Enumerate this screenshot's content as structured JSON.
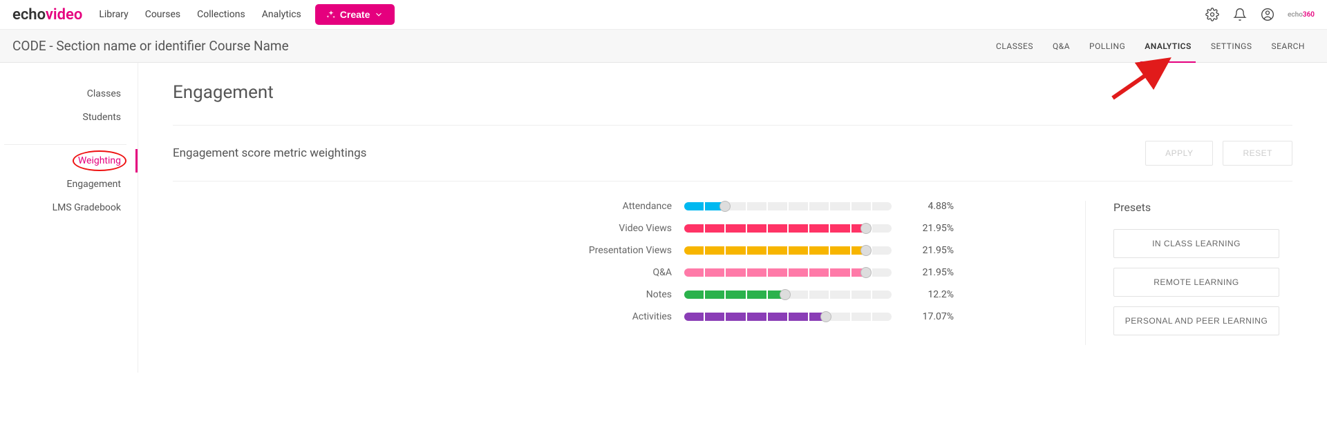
{
  "brand": {
    "part1": "echo",
    "part2": "video",
    "tag1": "echo",
    "tag2": "360"
  },
  "nav": {
    "items": [
      "Library",
      "Courses",
      "Collections",
      "Analytics"
    ],
    "create_label": "Create"
  },
  "coursebar": {
    "title": "CODE - Section name or identifier Course Name",
    "tabs": [
      {
        "label": "CLASSES",
        "active": false
      },
      {
        "label": "Q&A",
        "active": false
      },
      {
        "label": "POLLING",
        "active": false
      },
      {
        "label": "ANALYTICS",
        "active": true
      },
      {
        "label": "SETTINGS",
        "active": false
      },
      {
        "label": "SEARCH",
        "active": false
      }
    ]
  },
  "sidebar": {
    "group1": [
      "Classes",
      "Students"
    ],
    "group2": [
      {
        "label": "Weighting",
        "active": true,
        "circled": true
      },
      {
        "label": "Engagement",
        "active": false
      },
      {
        "label": "LMS Gradebook",
        "active": false
      }
    ]
  },
  "page": {
    "title": "Engagement",
    "section_title": "Engagement score metric weightings",
    "apply_label": "APPLY",
    "reset_label": "RESET"
  },
  "sliders": [
    {
      "label": "Attendance",
      "value": 4.88,
      "display": "4.88%",
      "color": "#00b8f0"
    },
    {
      "label": "Video Views",
      "value": 21.95,
      "display": "21.95%",
      "color": "#ff3366"
    },
    {
      "label": "Presentation Views",
      "value": 21.95,
      "display": "21.95%",
      "color": "#f7b500"
    },
    {
      "label": "Q&A",
      "value": 21.95,
      "display": "21.95%",
      "color": "#ff7aa8"
    },
    {
      "label": "Notes",
      "value": 12.2,
      "display": "12.2%",
      "color": "#2bb24c"
    },
    {
      "label": "Activities",
      "value": 17.07,
      "display": "17.07%",
      "color": "#8a3db6"
    }
  ],
  "slider_max": 25,
  "presets": {
    "title": "Presets",
    "items": [
      "IN CLASS LEARNING",
      "REMOTE LEARNING",
      "PERSONAL AND PEER LEARNING"
    ]
  },
  "annotation": {
    "arrow_color": "#e11b1b"
  }
}
